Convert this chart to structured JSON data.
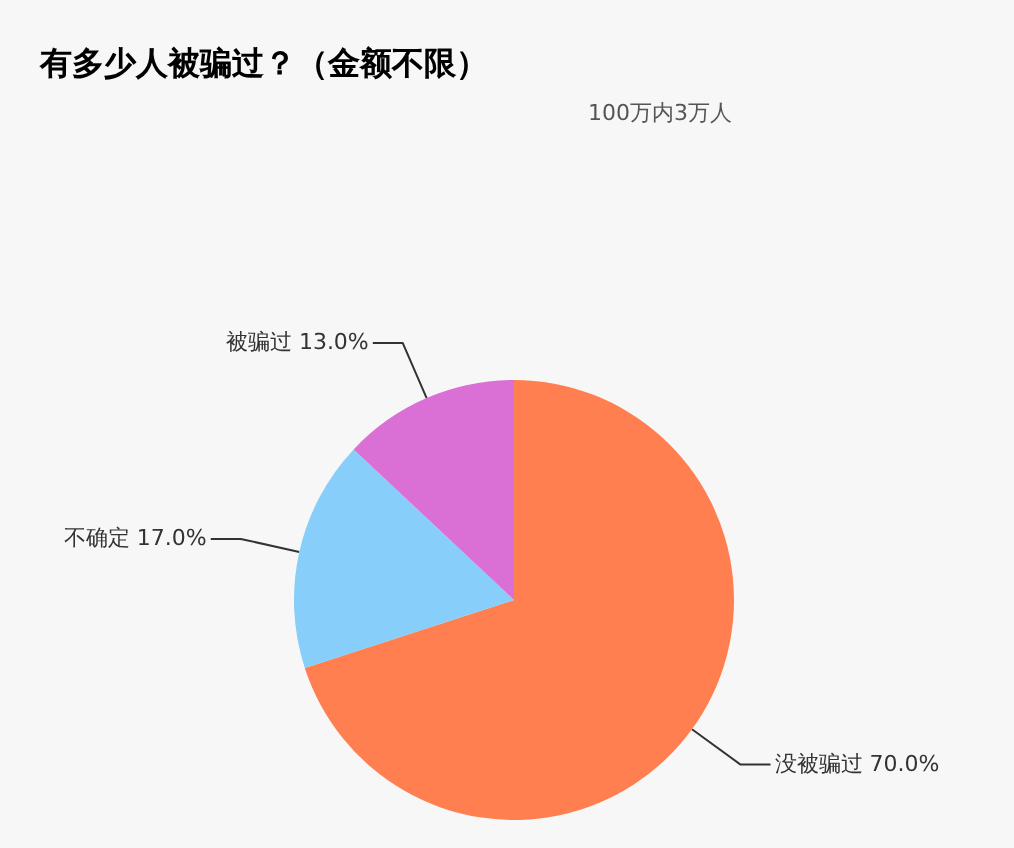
{
  "chart_data": {
    "type": "pie",
    "title": "有多少人被骗过？（金额不限）",
    "subtitle": "100万内3万人",
    "categories": [
      "没被骗过",
      "不确定",
      "被骗过"
    ],
    "values": [
      70,
      17,
      13
    ],
    "colors": [
      "#ff7f50",
      "#87cefa",
      "#da70d6"
    ],
    "value_labels": [
      "70.0%",
      "17.0%",
      "13.0%"
    ]
  }
}
